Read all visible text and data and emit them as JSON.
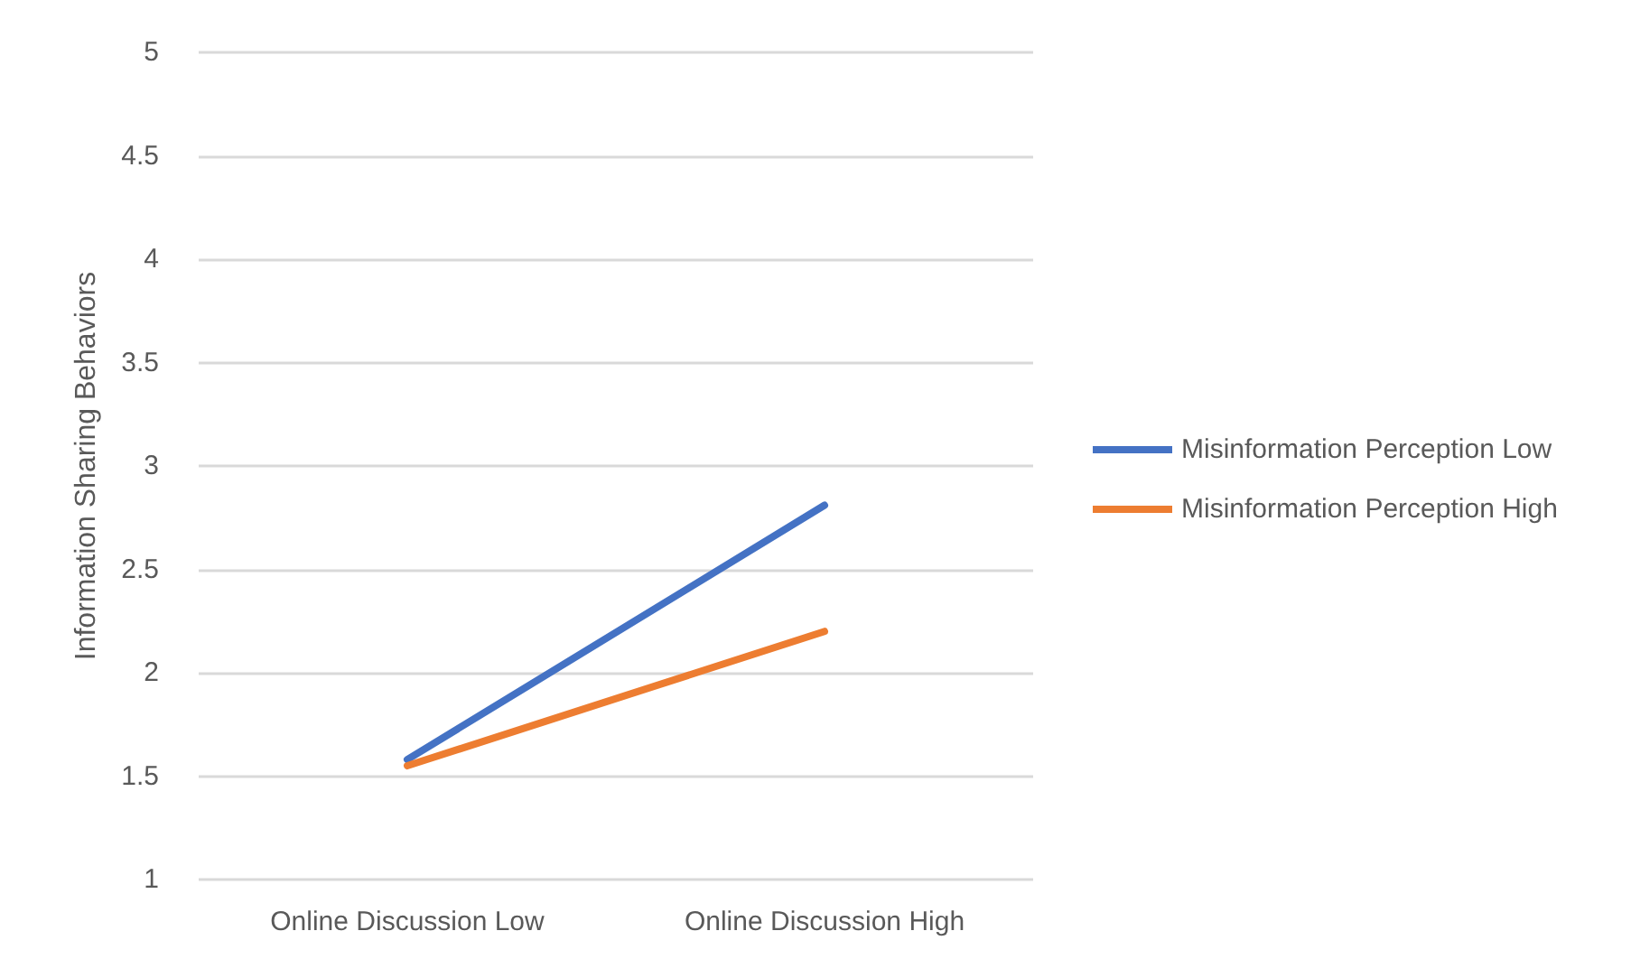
{
  "chart_data": {
    "type": "line",
    "ylabel": "Information Sharing Behaviors",
    "categories": [
      "Online Discussion Low",
      "Online Discussion High"
    ],
    "series": [
      {
        "name": "Misinformation Perception Low",
        "color": "#4472c4",
        "values": [
          1.58,
          2.81
        ]
      },
      {
        "name": "Misinformation Perception High",
        "color": "#ed7d31",
        "values": [
          1.55,
          2.2
        ]
      }
    ],
    "ylim": [
      1,
      5
    ],
    "yticks": [
      1,
      1.5,
      2,
      2.5,
      3,
      3.5,
      4,
      4.5,
      5
    ],
    "grid": "y",
    "legend": "right",
    "marker": "none",
    "line_style": "solid"
  }
}
